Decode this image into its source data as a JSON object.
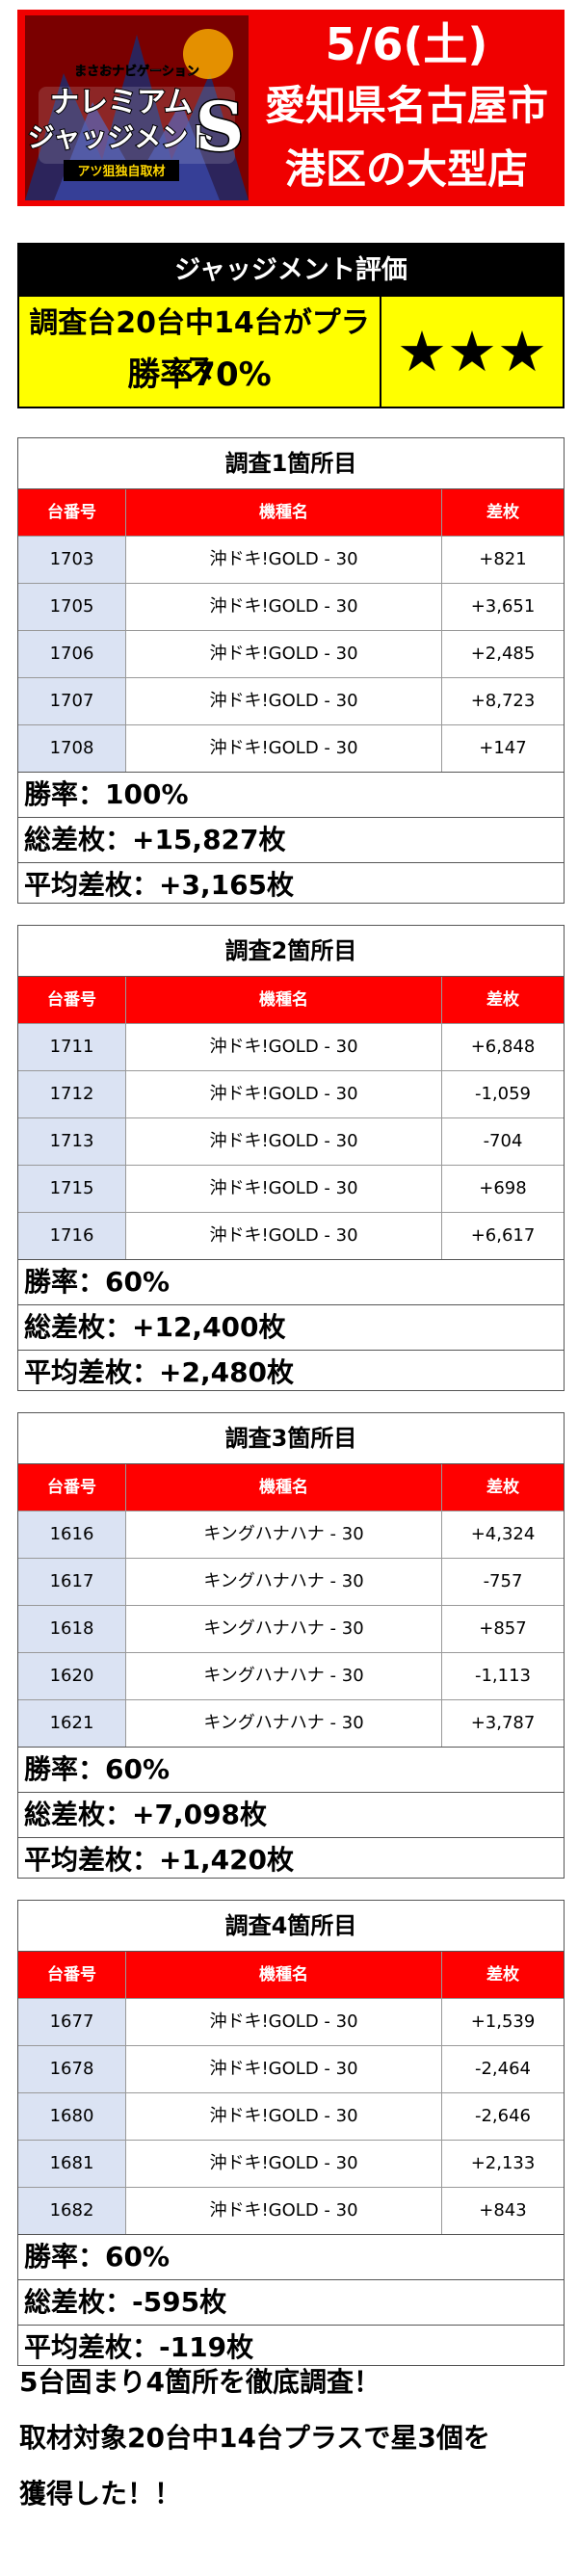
{
  "banner": {
    "logo_caption_top": "まさおナビゲーション",
    "logo_line1": "ナレミアム",
    "logo_line2": "ジャッジメント",
    "logo_badge": "S",
    "logo_caption_bottom": "アツ狙独自取材",
    "date": "5/6(土)",
    "city": "愛知県名古屋市",
    "store": "港区の大型店"
  },
  "judgement": {
    "header": "ジャッジメント評価",
    "summary": "調査台20台中14台がプラス",
    "win_rate": "勝率70%",
    "stars": "★★★"
  },
  "columns": {
    "machine_no": "台番号",
    "model": "機種名",
    "diff": "差枚"
  },
  "surveys": [
    {
      "title": "調査1箇所目",
      "rows": [
        {
          "no": "1703",
          "model": "沖ドキ!GOLD - 30",
          "diff": "+821"
        },
        {
          "no": "1705",
          "model": "沖ドキ!GOLD - 30",
          "diff": "+3,651"
        },
        {
          "no": "1706",
          "model": "沖ドキ!GOLD - 30",
          "diff": "+2,485"
        },
        {
          "no": "1707",
          "model": "沖ドキ!GOLD - 30",
          "diff": "+8,723"
        },
        {
          "no": "1708",
          "model": "沖ドキ!GOLD - 30",
          "diff": "+147"
        }
      ],
      "win_rate": "勝率：100%",
      "total": "総差枚：+15,827枚",
      "average": "平均差枚：+3,165枚"
    },
    {
      "title": "調査2箇所目",
      "rows": [
        {
          "no": "1711",
          "model": "沖ドキ!GOLD - 30",
          "diff": "+6,848"
        },
        {
          "no": "1712",
          "model": "沖ドキ!GOLD - 30",
          "diff": "-1,059"
        },
        {
          "no": "1713",
          "model": "沖ドキ!GOLD - 30",
          "diff": "-704"
        },
        {
          "no": "1715",
          "model": "沖ドキ!GOLD - 30",
          "diff": "+698"
        },
        {
          "no": "1716",
          "model": "沖ドキ!GOLD - 30",
          "diff": "+6,617"
        }
      ],
      "win_rate": "勝率：60%",
      "total": "総差枚：+12,400枚",
      "average": "平均差枚：+2,480枚"
    },
    {
      "title": "調査3箇所目",
      "rows": [
        {
          "no": "1616",
          "model": "キングハナハナ - 30",
          "diff": "+4,324"
        },
        {
          "no": "1617",
          "model": "キングハナハナ - 30",
          "diff": "-757"
        },
        {
          "no": "1618",
          "model": "キングハナハナ - 30",
          "diff": "+857"
        },
        {
          "no": "1620",
          "model": "キングハナハナ - 30",
          "diff": "-1,113"
        },
        {
          "no": "1621",
          "model": "キングハナハナ - 30",
          "diff": "+3,787"
        }
      ],
      "win_rate": "勝率：60%",
      "total": "総差枚：+7,098枚",
      "average": "平均差枚：+1,420枚"
    },
    {
      "title": "調査4箇所目",
      "rows": [
        {
          "no": "1677",
          "model": "沖ドキ!GOLD - 30",
          "diff": "+1,539"
        },
        {
          "no": "1678",
          "model": "沖ドキ!GOLD - 30",
          "diff": "-2,464"
        },
        {
          "no": "1680",
          "model": "沖ドキ!GOLD - 30",
          "diff": "-2,646"
        },
        {
          "no": "1681",
          "model": "沖ドキ!GOLD - 30",
          "diff": "+2,133"
        },
        {
          "no": "1682",
          "model": "沖ドキ!GOLD - 30",
          "diff": "+843"
        }
      ],
      "win_rate": "勝率：60%",
      "total": "総差枚：-595枚",
      "average": "平均差枚：-119枚"
    }
  ],
  "footer": {
    "line1": "5台固まり4箇所を徹底調査！",
    "line2": "取材対象20台中14台プラスで星3個を",
    "line3": "獲得した！！"
  },
  "colors": {
    "banner_red": "#f00000",
    "header_red": "#ff0000",
    "highlight_yellow": "#ffff00",
    "id_cell_blue": "#dbe3f3"
  }
}
